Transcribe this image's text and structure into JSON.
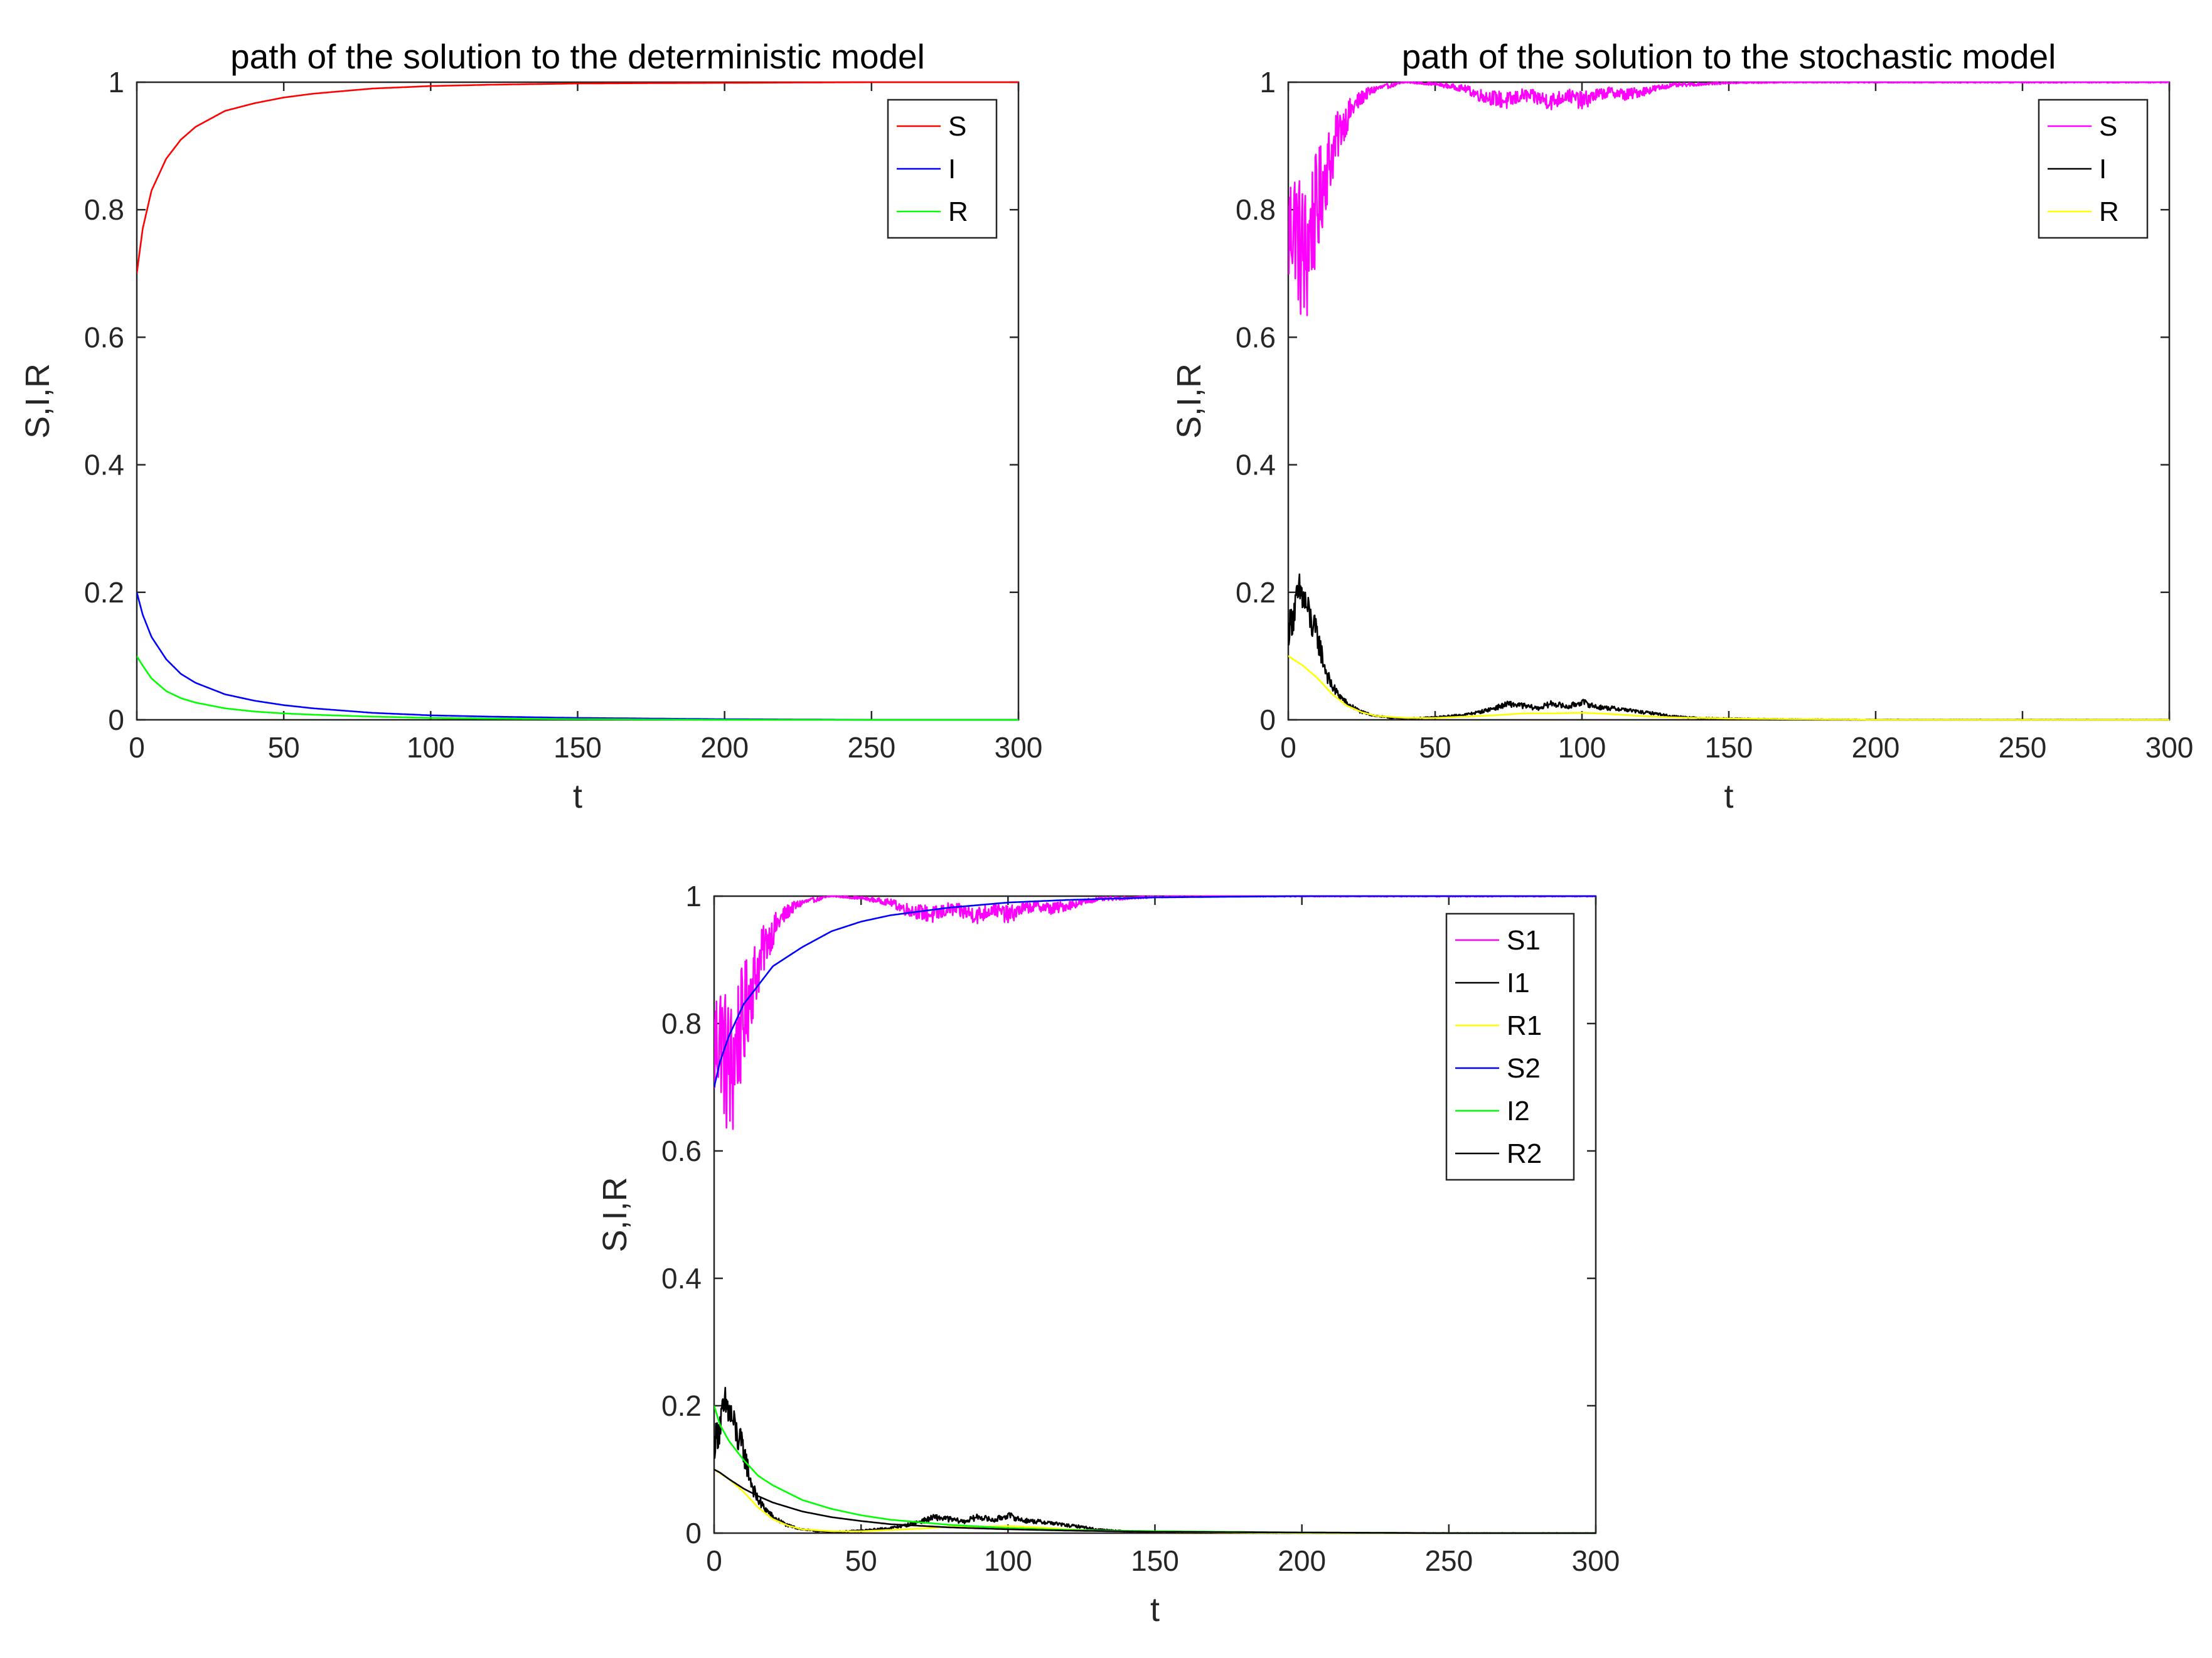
{
  "chart_data": [
    {
      "type": "line",
      "title": "path of the solution to the deterministic model",
      "xlabel": "t",
      "ylabel": "S,I,R",
      "xlim": [
        0,
        300
      ],
      "ylim": [
        0,
        1
      ],
      "xticks": [
        "0",
        "50",
        "100",
        "150",
        "200",
        "250",
        "300"
      ],
      "yticks": [
        "0",
        "0.2",
        "0.4",
        "0.6",
        "0.8",
        "1"
      ],
      "grid": false,
      "legend_position": "top-right",
      "series": [
        {
          "name": "S",
          "color": "#ff0000",
          "kind": "smooth",
          "x": [
            0,
            2,
            5,
            10,
            15,
            20,
            30,
            40,
            50,
            60,
            80,
            100,
            120,
            150,
            200,
            250,
            300
          ],
          "y": [
            0.7,
            0.77,
            0.83,
            0.88,
            0.91,
            0.93,
            0.955,
            0.967,
            0.976,
            0.982,
            0.99,
            0.994,
            0.996,
            0.998,
            0.999,
            1.0,
            1.0
          ]
        },
        {
          "name": "I",
          "color": "#0000ff",
          "kind": "smooth",
          "x": [
            0,
            2,
            5,
            10,
            15,
            20,
            30,
            40,
            50,
            60,
            80,
            100,
            120,
            150,
            200,
            250,
            300
          ],
          "y": [
            0.2,
            0.165,
            0.13,
            0.095,
            0.072,
            0.058,
            0.04,
            0.03,
            0.023,
            0.018,
            0.011,
            0.007,
            0.005,
            0.003,
            0.001,
            0.0,
            0.0
          ]
        },
        {
          "name": "R",
          "color": "#00ff00",
          "kind": "smooth",
          "x": [
            0,
            2,
            5,
            10,
            15,
            20,
            30,
            40,
            50,
            60,
            80,
            100,
            120,
            150,
            200,
            250,
            300
          ],
          "y": [
            0.1,
            0.085,
            0.065,
            0.045,
            0.034,
            0.027,
            0.018,
            0.013,
            0.01,
            0.008,
            0.005,
            0.003,
            0.002,
            0.001,
            0.0,
            0.0,
            0.0
          ]
        }
      ]
    },
    {
      "type": "line",
      "title": "path of the solution to the stochastic model",
      "xlabel": "t",
      "ylabel": "S,I,R",
      "xlim": [
        0,
        300
      ],
      "ylim": [
        0,
        1
      ],
      "xticks": [
        "0",
        "50",
        "100",
        "150",
        "200",
        "250",
        "300"
      ],
      "yticks": [
        "0",
        "0.2",
        "0.4",
        "0.6",
        "0.8",
        "1"
      ],
      "grid": false,
      "legend_position": "top-right",
      "series": [
        {
          "name": "S",
          "color": "#ff00ff",
          "kind": "noisy",
          "x": [
            0,
            2,
            4,
            6,
            8,
            10,
            12,
            15,
            18,
            22,
            26,
            30,
            35,
            40,
            50,
            60,
            65,
            70,
            75,
            80,
            85,
            90,
            95,
            100,
            105,
            110,
            115,
            120,
            125,
            130,
            140,
            150,
            170,
            200,
            250,
            300
          ],
          "y": [
            0.76,
            0.79,
            0.74,
            0.72,
            0.78,
            0.8,
            0.85,
            0.89,
            0.93,
            0.96,
            0.98,
            0.99,
            0.995,
            1.0,
            0.997,
            0.99,
            0.98,
            0.975,
            0.97,
            0.98,
            0.975,
            0.97,
            0.98,
            0.97,
            0.98,
            0.985,
            0.98,
            0.985,
            0.99,
            0.995,
            0.997,
            0.999,
            1.0,
            1.0,
            1.0,
            1.0
          ]
        },
        {
          "name": "I",
          "color": "#000000",
          "kind": "noisy",
          "x": [
            0,
            2,
            4,
            6,
            8,
            10,
            12,
            14,
            16,
            18,
            20,
            25,
            30,
            35,
            40,
            50,
            60,
            65,
            70,
            75,
            80,
            85,
            90,
            95,
            100,
            105,
            110,
            115,
            120,
            125,
            130,
            140,
            150,
            170,
            200,
            250,
            300
          ],
          "y": [
            0.14,
            0.17,
            0.2,
            0.18,
            0.15,
            0.13,
            0.09,
            0.06,
            0.045,
            0.035,
            0.025,
            0.012,
            0.006,
            0.003,
            0.002,
            0.004,
            0.008,
            0.012,
            0.018,
            0.025,
            0.022,
            0.018,
            0.026,
            0.02,
            0.028,
            0.02,
            0.018,
            0.016,
            0.012,
            0.01,
            0.006,
            0.003,
            0.002,
            0.001,
            0.0,
            0.0,
            0.0
          ]
        },
        {
          "name": "R",
          "color": "#ffff00",
          "kind": "smooth",
          "x": [
            0,
            5,
            10,
            15,
            20,
            25,
            30,
            40,
            50,
            60,
            70,
            80,
            90,
            100,
            110,
            120,
            130,
            150,
            200,
            250,
            300
          ],
          "y": [
            0.1,
            0.085,
            0.065,
            0.04,
            0.022,
            0.012,
            0.006,
            0.003,
            0.003,
            0.005,
            0.007,
            0.01,
            0.01,
            0.011,
            0.009,
            0.006,
            0.004,
            0.002,
            0.0,
            0.0,
            0.0
          ]
        }
      ]
    },
    {
      "type": "line",
      "title": "",
      "xlabel": "t",
      "ylabel": "S,I,R",
      "xlim": [
        0,
        300
      ],
      "ylim": [
        0,
        1
      ],
      "xticks": [
        "0",
        "50",
        "100",
        "150",
        "200",
        "250",
        "300"
      ],
      "yticks": [
        "0",
        "0.2",
        "0.4",
        "0.6",
        "0.8",
        "1"
      ],
      "grid": false,
      "legend_position": "top-right",
      "series": [
        {
          "name": "S1",
          "color": "#ff00ff",
          "kind": "noisy",
          "x": [
            0,
            2,
            4,
            6,
            8,
            10,
            12,
            15,
            18,
            22,
            26,
            30,
            35,
            40,
            50,
            60,
            65,
            70,
            75,
            80,
            85,
            90,
            95,
            100,
            105,
            110,
            115,
            120,
            125,
            130,
            140,
            150,
            170,
            200,
            250,
            300
          ],
          "y": [
            0.76,
            0.79,
            0.74,
            0.72,
            0.78,
            0.8,
            0.85,
            0.89,
            0.93,
            0.96,
            0.98,
            0.99,
            0.995,
            1.0,
            0.997,
            0.99,
            0.98,
            0.975,
            0.97,
            0.98,
            0.975,
            0.97,
            0.98,
            0.97,
            0.98,
            0.985,
            0.98,
            0.985,
            0.99,
            0.995,
            0.997,
            0.999,
            1.0,
            1.0,
            1.0,
            1.0
          ]
        },
        {
          "name": "I1",
          "color": "#000000",
          "kind": "noisy",
          "x": [
            0,
            2,
            4,
            6,
            8,
            10,
            12,
            14,
            16,
            18,
            20,
            25,
            30,
            35,
            40,
            50,
            60,
            65,
            70,
            75,
            80,
            85,
            90,
            95,
            100,
            105,
            110,
            115,
            120,
            125,
            130,
            140,
            150,
            170,
            200,
            250,
            300
          ],
          "y": [
            0.14,
            0.17,
            0.2,
            0.18,
            0.15,
            0.13,
            0.09,
            0.06,
            0.045,
            0.035,
            0.025,
            0.012,
            0.006,
            0.003,
            0.002,
            0.004,
            0.008,
            0.012,
            0.018,
            0.025,
            0.022,
            0.018,
            0.026,
            0.02,
            0.028,
            0.02,
            0.018,
            0.016,
            0.012,
            0.01,
            0.006,
            0.003,
            0.002,
            0.001,
            0.0,
            0.0,
            0.0
          ]
        },
        {
          "name": "R1",
          "color": "#ffff00",
          "kind": "smooth",
          "x": [
            0,
            5,
            10,
            15,
            20,
            25,
            30,
            40,
            50,
            60,
            70,
            80,
            90,
            100,
            110,
            120,
            130,
            150,
            200,
            250,
            300
          ],
          "y": [
            0.1,
            0.085,
            0.065,
            0.04,
            0.022,
            0.012,
            0.006,
            0.003,
            0.003,
            0.005,
            0.007,
            0.01,
            0.01,
            0.011,
            0.009,
            0.006,
            0.004,
            0.002,
            0.0,
            0.0,
            0.0
          ]
        },
        {
          "name": "S2",
          "color": "#0000ff",
          "kind": "smooth",
          "x": [
            0,
            2,
            5,
            10,
            15,
            20,
            30,
            40,
            50,
            60,
            80,
            100,
            120,
            150,
            200,
            250,
            300
          ],
          "y": [
            0.7,
            0.74,
            0.78,
            0.83,
            0.86,
            0.89,
            0.92,
            0.945,
            0.96,
            0.97,
            0.982,
            0.99,
            0.994,
            0.998,
            1.0,
            1.0,
            1.0
          ]
        },
        {
          "name": "I2",
          "color": "#00ff00",
          "kind": "smooth",
          "x": [
            0,
            2,
            5,
            10,
            15,
            20,
            30,
            40,
            50,
            60,
            80,
            100,
            120,
            150,
            200,
            250,
            300
          ],
          "y": [
            0.2,
            0.17,
            0.145,
            0.115,
            0.09,
            0.075,
            0.052,
            0.038,
            0.028,
            0.021,
            0.013,
            0.008,
            0.005,
            0.003,
            0.001,
            0.0,
            0.0
          ]
        },
        {
          "name": "R2",
          "color": "#000000",
          "kind": "smooth",
          "x": [
            0,
            2,
            5,
            10,
            15,
            20,
            30,
            40,
            50,
            60,
            80,
            100,
            120,
            150,
            200,
            250,
            300
          ],
          "y": [
            0.1,
            0.095,
            0.085,
            0.07,
            0.058,
            0.048,
            0.034,
            0.025,
            0.019,
            0.014,
            0.009,
            0.006,
            0.004,
            0.002,
            0.001,
            0.0,
            0.0
          ]
        }
      ]
    }
  ]
}
